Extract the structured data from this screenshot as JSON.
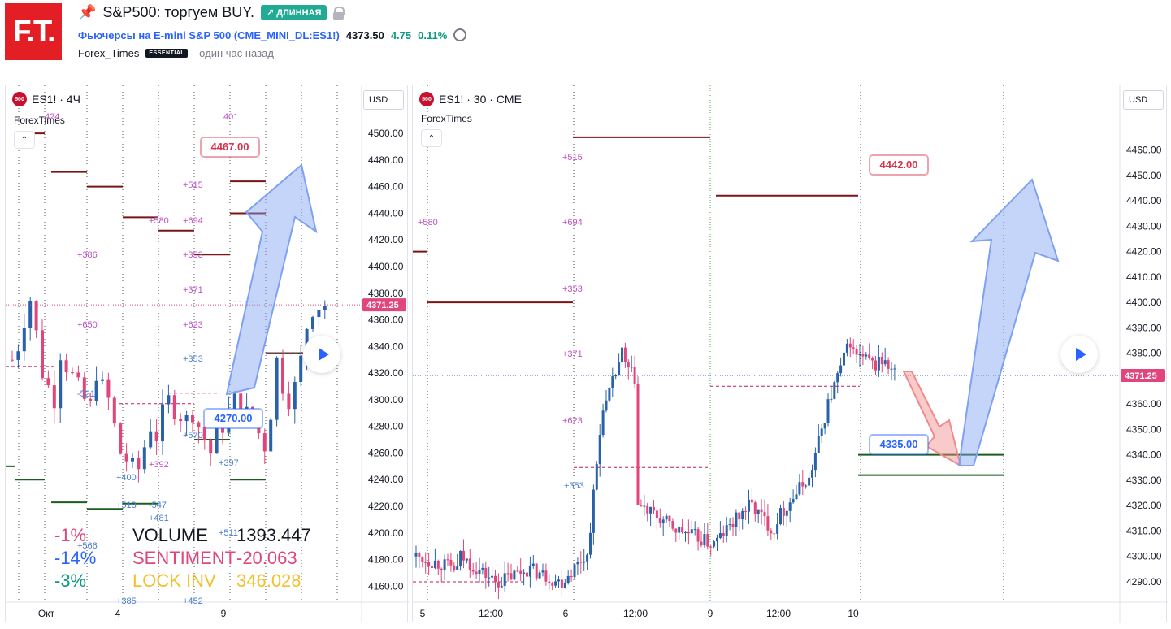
{
  "header": {
    "logo_text": "F.T.",
    "title": "S&P500: торгуем BUY.",
    "badge": "↗ ДЛИННАЯ",
    "symbol_name": "Фьючерсы на E-mini S&P 500",
    "symbol_code": "(CME_MINI_DL:ES1!)",
    "price": "4373.50",
    "change": "4.75",
    "change_pct": "0.11%",
    "author": "Forex_Times",
    "author_badge": "ESSENTIAL",
    "time_ago": "один час назад"
  },
  "colors": {
    "up": "#2962a8",
    "down": "#e0457b",
    "resistance": "#7b1416",
    "support": "#1b5e20",
    "arrow_up": "#7fa1f2",
    "arrow_down": "#f08a8a",
    "price_tag": "#e0457b",
    "label_purple": "#c04fc4",
    "label_blue": "#4a7fd0"
  },
  "left_panel": {
    "legend_symbol": "ES1! · 4Ч",
    "legend_icon": "500",
    "indicator": "ForexTimes",
    "currency": "USD",
    "current_price": "4371.25",
    "callouts": [
      {
        "text": "4467.00",
        "color": "#d8324b"
      },
      {
        "text": "4270.00",
        "color": "#2962ff"
      }
    ],
    "x_labels": [
      "Окт",
      "4",
      "9"
    ],
    "volume": {
      "rows": [
        {
          "pct": "-1%",
          "pct_color": "#e0457b",
          "name": "VOLUME",
          "name_color": "#131722",
          "value": "1393.447",
          "value_color": "#131722"
        },
        {
          "pct": "-14%",
          "pct_color": "#2962ff",
          "name": "SENTIMENT",
          "name_color": "#e0457b",
          "value": "-20.063",
          "value_color": "#e0457b"
        },
        {
          "pct": "-3%",
          "pct_color": "#089981",
          "name": "LOCK INV",
          "name_color": "#f2c12e",
          "value": "346.028",
          "value_color": "#f2c12e"
        }
      ]
    },
    "annotations": [
      {
        "text": "424",
        "color": "#c04fc4"
      },
      {
        "text": "401",
        "color": "#c04fc4"
      },
      {
        "text": "+515",
        "color": "#c04fc4"
      },
      {
        "text": "+580",
        "color": "#c04fc4"
      },
      {
        "text": "+694",
        "color": "#c04fc4"
      },
      {
        "text": "+386",
        "color": "#c04fc4"
      },
      {
        "text": "+353",
        "color": "#c04fc4"
      },
      {
        "text": "+371",
        "color": "#c04fc4"
      },
      {
        "text": "+650",
        "color": "#c04fc4"
      },
      {
        "text": "+623",
        "color": "#c04fc4"
      },
      {
        "text": "+353",
        "color": "#4a7fd0"
      },
      {
        "text": "-531",
        "color": "#4a7fd0"
      },
      {
        "text": "+392",
        "color": "#c04fc4"
      },
      {
        "text": "+570",
        "color": "#4a7fd0"
      },
      {
        "text": "+397",
        "color": "#4a7fd0"
      },
      {
        "text": "+400",
        "color": "#4a7fd0"
      },
      {
        "text": "+513",
        "color": "#4a7fd0"
      },
      {
        "text": "-547",
        "color": "#4a7fd0"
      },
      {
        "text": "+481",
        "color": "#4a7fd0"
      },
      {
        "text": "+566",
        "color": "#4a7fd0"
      },
      {
        "text": "+511",
        "color": "#4a7fd0"
      },
      {
        "text": "+385",
        "color": "#4a7fd0"
      },
      {
        "text": "+452",
        "color": "#4a7fd0"
      }
    ]
  },
  "right_panel": {
    "legend_symbol": "ES1! · 30 · CME",
    "legend_icon": "500",
    "indicator": "ForexTimes",
    "currency": "USD",
    "current_price": "4371.25",
    "callouts": [
      {
        "text": "4442.00",
        "color": "#d8324b"
      },
      {
        "text": "4335.00",
        "color": "#2962ff"
      }
    ],
    "x_labels": [
      "5",
      "12:00",
      "6",
      "12:00",
      "9",
      "12:00",
      "10"
    ],
    "annotations": [
      {
        "text": "+515",
        "color": "#c04fc4"
      },
      {
        "text": "+580",
        "color": "#c04fc4"
      },
      {
        "text": "+694",
        "color": "#c04fc4"
      },
      {
        "text": "+353",
        "color": "#c04fc4"
      },
      {
        "text": "+371",
        "color": "#c04fc4"
      },
      {
        "text": "+623",
        "color": "#c04fc4"
      },
      {
        "text": "+353",
        "color": "#4a7fd0"
      }
    ]
  },
  "chart_data": [
    {
      "type": "candlestick",
      "timeframe": "4Ч",
      "y_ticks": [
        4160,
        4180,
        4200,
        4220,
        4240,
        4260,
        4280,
        4300,
        4320,
        4340,
        4360,
        4380,
        4400,
        4420,
        4440,
        4460,
        4480,
        4500
      ],
      "ylim": [
        4148,
        4508
      ],
      "x_labels": [
        "Окт",
        "4",
        "9"
      ],
      "last_price": 4371.25,
      "resistance_levels": [
        4500,
        4471,
        4460,
        4437,
        4427,
        4409,
        4464,
        4440
      ],
      "support_levels": [
        4250,
        4223,
        4240,
        4218,
        4222,
        4270,
        4240,
        4335
      ],
      "targets": {
        "buy_target": 4467.0,
        "entry": 4270.0
      }
    },
    {
      "type": "candlestick",
      "timeframe": "30",
      "y_ticks": [
        4290,
        4300,
        4310,
        4320,
        4330,
        4340,
        4350,
        4360,
        4370,
        4380,
        4390,
        4400,
        4410,
        4420,
        4430,
        4440,
        4450,
        4460
      ],
      "ylim": [
        4282,
        4472
      ],
      "x_labels": [
        "5",
        "12:00",
        "6",
        "12:00",
        "9",
        "12:00",
        "10"
      ],
      "last_price": 4371.25,
      "resistance_levels": [
        4465,
        4442,
        4420,
        4400
      ],
      "support_levels": [
        4340,
        4332
      ],
      "targets": {
        "buy_target": 4442.0,
        "entry": 4335.0
      }
    }
  ]
}
